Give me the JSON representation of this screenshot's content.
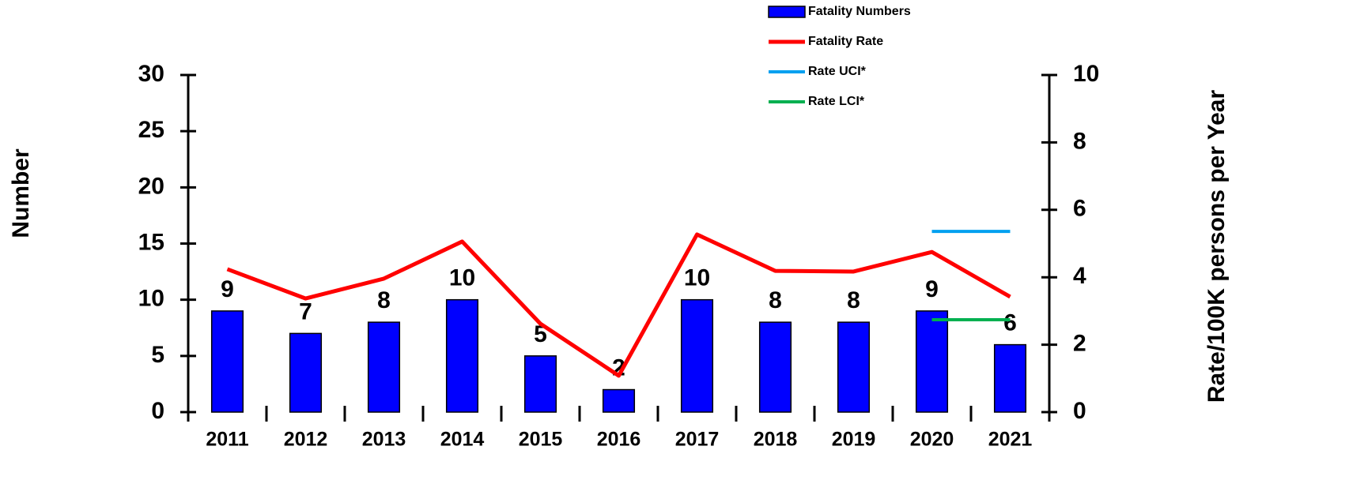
{
  "chart_data": {
    "type": "bar",
    "categories": [
      "2011",
      "2012",
      "2013",
      "2014",
      "2015",
      "2016",
      "2017",
      "2018",
      "2019",
      "2020",
      "2021"
    ],
    "series": [
      {
        "name": "Fatality Numbers",
        "type": "bar",
        "color": "#0000ff",
        "values": [
          9,
          7,
          8,
          10,
          5,
          2,
          10,
          8,
          8,
          9,
          6
        ]
      },
      {
        "name": "Fatality Rate",
        "type": "line",
        "axis": "y2",
        "color": "#ff0000",
        "values": [
          4.24,
          3.37,
          3.96,
          5.06,
          2.62,
          1.08,
          5.27,
          4.19,
          4.17,
          4.75,
          3.42
        ]
      },
      {
        "name": "Rate UCI*",
        "type": "line",
        "axis": "y2",
        "color": "#00a0f0",
        "values": [
          null,
          null,
          null,
          null,
          null,
          null,
          null,
          null,
          null,
          5.36,
          5.36
        ]
      },
      {
        "name": "Rate LCI*",
        "type": "line",
        "axis": "y2",
        "color": "#00b050",
        "values": [
          null,
          null,
          null,
          null,
          null,
          null,
          null,
          null,
          null,
          2.74,
          2.74
        ]
      }
    ],
    "ylabel": "Number",
    "y2label": "Rate/100K persons per Year",
    "ylim": [
      0,
      30
    ],
    "yticks": [
      0,
      5,
      10,
      15,
      20,
      25,
      30
    ],
    "y2lim": [
      0,
      10
    ],
    "y2ticks": [
      0,
      2,
      4,
      6,
      8,
      10
    ],
    "legend": "top"
  }
}
